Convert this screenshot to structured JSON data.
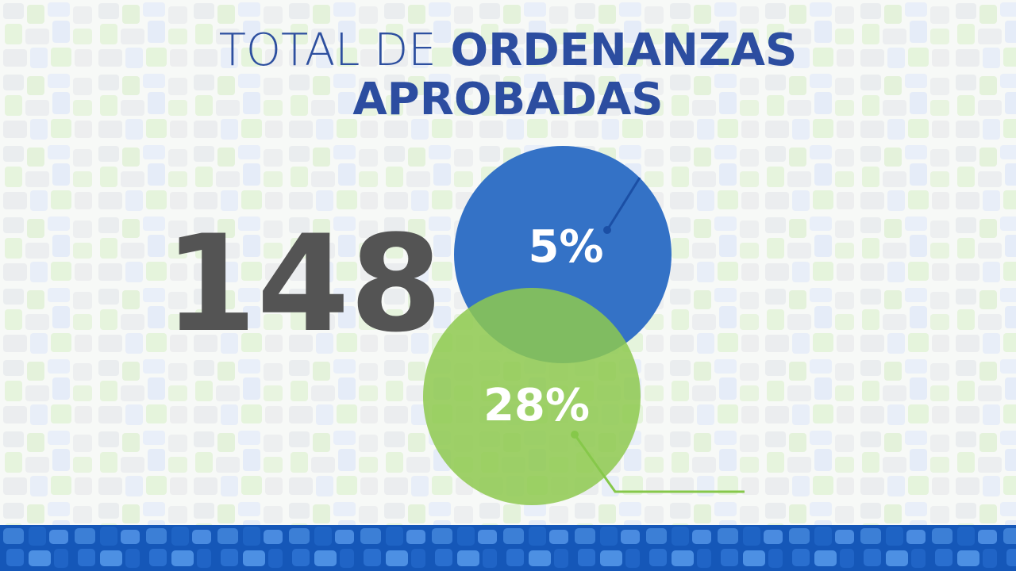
{
  "title": {
    "light": "TOTAL DE",
    "bold_line1": "ORDENANZAS",
    "bold_line2": "APROBADAS"
  },
  "total": "148",
  "circles": [
    {
      "label": "5%"
    },
    {
      "label": "28%"
    }
  ]
}
